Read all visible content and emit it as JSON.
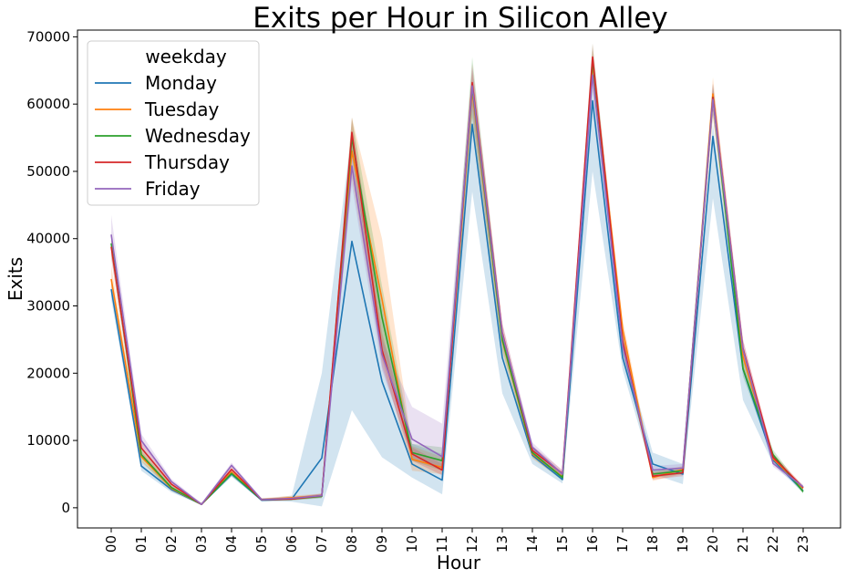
{
  "chart_data": {
    "type": "line",
    "title": "Exits per Hour in Silicon Alley",
    "xlabel": "Hour",
    "ylabel": "Exits",
    "ylim": [
      -3000,
      71000
    ],
    "yticks": [
      0,
      10000,
      20000,
      30000,
      40000,
      50000,
      60000,
      70000
    ],
    "grid": false,
    "legend_placement": "top-left",
    "legend_title": "weekday",
    "categories": [
      "00",
      "01",
      "02",
      "03",
      "04",
      "05",
      "06",
      "07",
      "08",
      "09",
      "10",
      "11",
      "12",
      "13",
      "14",
      "15",
      "16",
      "17",
      "18",
      "19",
      "20",
      "21",
      "22",
      "23"
    ],
    "series": [
      {
        "name": "Monday",
        "color": "#1f77b4",
        "values": [
          32500,
          6200,
          2700,
          500,
          5000,
          1100,
          1300,
          7400,
          39600,
          18800,
          6500,
          4100,
          57000,
          22300,
          7800,
          4200,
          60500,
          22300,
          6500,
          5000,
          55200,
          20600,
          7100,
          2500
        ],
        "ci_low": [
          31000,
          5500,
          2300,
          400,
          4600,
          1000,
          900,
          200,
          14500,
          7500,
          4500,
          2000,
          47000,
          17000,
          6500,
          3600,
          50000,
          20500,
          5000,
          3500,
          46000,
          16000,
          6500,
          2200
        ],
        "ci_high": [
          34000,
          7000,
          3200,
          700,
          5400,
          1300,
          1800,
          20000,
          56000,
          30000,
          9500,
          8000,
          61000,
          25000,
          9000,
          5000,
          63000,
          24000,
          8200,
          6500,
          57000,
          22500,
          7800,
          2900
        ]
      },
      {
        "name": "Tuesday",
        "color": "#ff7f0e",
        "values": [
          34000,
          7600,
          2900,
          500,
          5300,
          1200,
          1500,
          1800,
          53000,
          31000,
          7200,
          6000,
          62000,
          24800,
          8000,
          4600,
          66000,
          26500,
          4500,
          5700,
          61500,
          22500,
          7300,
          2900
        ],
        "ci_low": [
          32500,
          6800,
          2500,
          400,
          4900,
          1000,
          1200,
          1500,
          49000,
          22000,
          5500,
          5000,
          58000,
          23000,
          7300,
          4200,
          63000,
          24000,
          4000,
          5000,
          58000,
          21000,
          6800,
          2600
        ],
        "ci_high": [
          36000,
          8400,
          3300,
          700,
          5700,
          1400,
          1800,
          2100,
          58000,
          40000,
          9200,
          7500,
          65000,
          26500,
          8800,
          5100,
          68000,
          28000,
          5300,
          6200,
          64000,
          24000,
          7900,
          3200
        ]
      },
      {
        "name": "Wednesday",
        "color": "#2ca02c",
        "values": [
          39300,
          7900,
          3000,
          500,
          5100,
          1200,
          1300,
          1700,
          55000,
          28300,
          8200,
          7000,
          62500,
          25000,
          8200,
          4500,
          66500,
          24500,
          5000,
          5500,
          61000,
          20700,
          7900,
          2400
        ],
        "ci_low": [
          37500,
          7000,
          2600,
          400,
          4700,
          1000,
          1100,
          1400,
          52000,
          24000,
          7000,
          5500,
          58000,
          23500,
          7500,
          4000,
          64000,
          23000,
          4500,
          5000,
          58500,
          19500,
          7200,
          2100
        ],
        "ci_high": [
          41000,
          8800,
          3400,
          700,
          5500,
          1400,
          1500,
          2000,
          58000,
          33000,
          9500,
          9000,
          67000,
          26500,
          9000,
          5000,
          69000,
          26000,
          5600,
          6000,
          63000,
          22000,
          8600,
          2700
        ]
      },
      {
        "name": "Thursday",
        "color": "#d62728",
        "values": [
          38800,
          8900,
          3500,
          500,
          5700,
          1200,
          1300,
          1800,
          55800,
          23500,
          8000,
          5600,
          63200,
          26000,
          8500,
          5100,
          67000,
          24800,
          4700,
          5200,
          61000,
          23700,
          7500,
          3000
        ],
        "ci_low": [
          37000,
          8000,
          3100,
          400,
          5300,
          1000,
          1100,
          1500,
          53000,
          21000,
          7000,
          4800,
          60000,
          24500,
          7800,
          4600,
          65000,
          23500,
          4200,
          4700,
          59000,
          22000,
          6900,
          2700
        ],
        "ci_high": [
          40500,
          9800,
          3900,
          700,
          6100,
          1400,
          1500,
          2100,
          58000,
          26000,
          9000,
          6500,
          66000,
          27500,
          9200,
          5600,
          69000,
          26000,
          5200,
          5700,
          63000,
          25000,
          8100,
          3300
        ]
      },
      {
        "name": "Friday",
        "color": "#9467bd",
        "values": [
          40600,
          10000,
          3900,
          500,
          6300,
          1200,
          1400,
          1800,
          50800,
          22800,
          10200,
          7600,
          62700,
          25800,
          9000,
          5000,
          64300,
          24000,
          5600,
          5900,
          60700,
          23500,
          6600,
          3100
        ],
        "ci_low": [
          38500,
          9000,
          3500,
          400,
          5900,
          1000,
          1200,
          1500,
          48000,
          20500,
          7500,
          6000,
          59000,
          24300,
          8300,
          4500,
          62000,
          22500,
          5000,
          5300,
          58500,
          22000,
          6100,
          2800
        ],
        "ci_high": [
          43500,
          11000,
          4300,
          700,
          6700,
          1400,
          1600,
          2100,
          53000,
          25000,
          15000,
          12500,
          65500,
          27300,
          9700,
          5500,
          66500,
          25500,
          6200,
          6500,
          63000,
          25000,
          7100,
          3400
        ]
      }
    ]
  }
}
